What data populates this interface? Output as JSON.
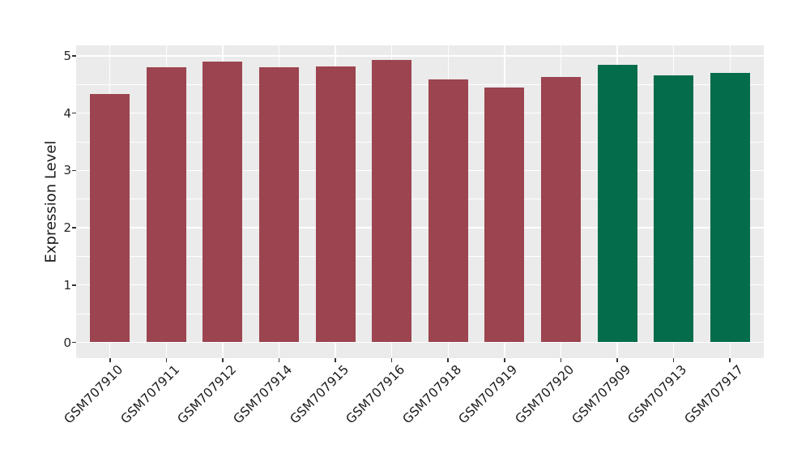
{
  "chart_data": {
    "type": "bar",
    "title": "",
    "xlabel": "",
    "ylabel": "Expression Level",
    "categories": [
      "GSM707910",
      "GSM707911",
      "GSM707912",
      "GSM707914",
      "GSM707915",
      "GSM707916",
      "GSM707918",
      "GSM707919",
      "GSM707920",
      "GSM707909",
      "GSM707913",
      "GSM707917"
    ],
    "values": [
      4.33,
      4.8,
      4.9,
      4.8,
      4.81,
      4.93,
      4.59,
      4.45,
      4.63,
      4.84,
      4.66,
      4.7
    ],
    "bar_colors": [
      "#9C4450",
      "#9C4450",
      "#9C4450",
      "#9C4450",
      "#9C4450",
      "#9C4450",
      "#9C4450",
      "#9C4450",
      "#9C4450",
      "#026C4B",
      "#026C4B",
      "#026C4B"
    ],
    "groups": [
      {
        "color": "#9C4450",
        "samples": [
          "GSM707910",
          "GSM707911",
          "GSM707912",
          "GSM707914",
          "GSM707915",
          "GSM707916",
          "GSM707918",
          "GSM707919",
          "GSM707920"
        ]
      },
      {
        "color": "#026C4B",
        "samples": [
          "GSM707909",
          "GSM707913",
          "GSM707917"
        ]
      }
    ],
    "yticks": [
      0,
      1,
      2,
      3,
      4,
      5
    ],
    "ytick_labels": [
      "0",
      "1",
      "2",
      "3",
      "4",
      "5"
    ],
    "minor_yticks": [
      0.5,
      1.5,
      2.5,
      3.5,
      4.5
    ],
    "ylim": [
      -0.29,
      5.18
    ],
    "grid": true,
    "legend": "none",
    "style": {
      "panel_background": "#EBEBEB",
      "grid_color": "#FFFFFF",
      "axis_text_color": "#262626",
      "tick_mark_color": "#333333",
      "figure_background": "#FFFFFF"
    }
  }
}
